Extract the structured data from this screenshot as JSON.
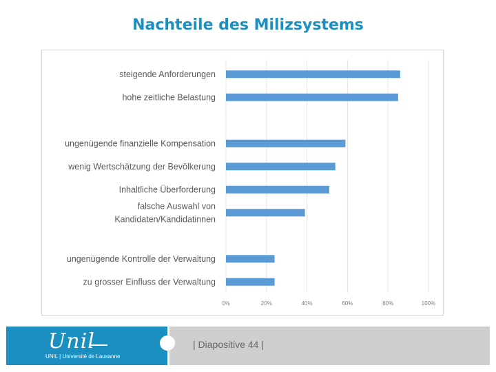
{
  "title": "Nachteile des Milizsystems",
  "chart_data": {
    "type": "bar",
    "orientation": "horizontal",
    "title": "",
    "xlabel": "",
    "ylabel": "",
    "xlim": [
      0,
      100
    ],
    "xticks": [
      "0%",
      "20%",
      "40%",
      "60%",
      "80%",
      "100%"
    ],
    "grid": true,
    "bar_color": "#5b9bd5",
    "categories": [
      [
        "steigende Anforderungen"
      ],
      [
        "hohe zeitliche Belastung"
      ],
      [
        "ungenügende finanzielle Kompensation"
      ],
      [
        "wenig Wertschätzung der Bevölkerung"
      ],
      [
        "Inhaltliche Überforderung"
      ],
      [
        "falsche Auswahl von",
        "Kandidaten/Kandidatinnen"
      ],
      [
        "ungenügende Kontrolle der Verwaltung"
      ],
      [
        "zu grosser Einfluss der Verwaltung"
      ]
    ],
    "values": [
      86,
      85,
      59,
      54,
      51,
      39,
      24,
      24
    ]
  },
  "footer": {
    "logo_word": "Unil",
    "logo_subtitle": "UNIL | Université de Lausanne",
    "slide_label": "| Diapositive 44 |"
  },
  "colors": {
    "accent": "#1a8fc0",
    "footer_gray": "#cfcfcf"
  }
}
